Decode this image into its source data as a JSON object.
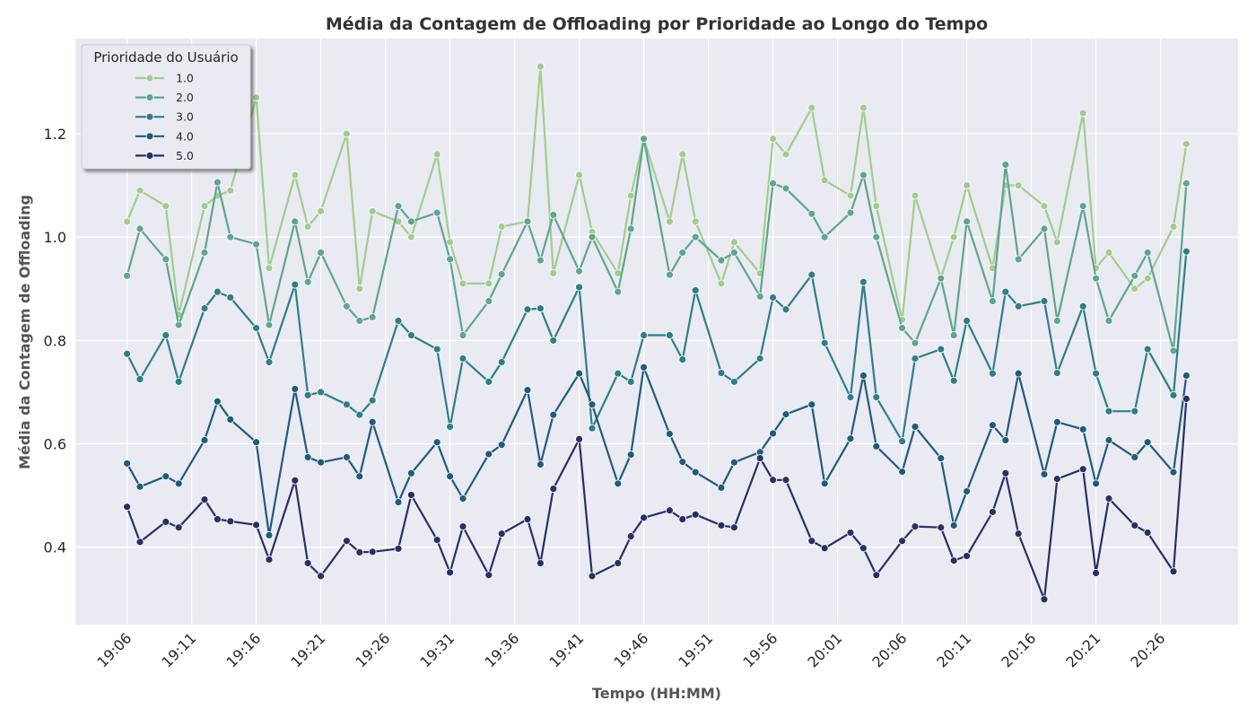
{
  "chart_data": {
    "type": "line",
    "title": "Média da Contagem de Offloading por Prioridade ao Longo do Tempo",
    "xlabel": "Tempo (HH:MM)",
    "ylabel": "Média da Contagem de Offloading",
    "legend_title": "Prioridade do Usuário",
    "legend_loc": "upper left",
    "grid": true,
    "x": [
      "19:06",
      "19:07",
      "19:09",
      "19:10",
      "19:12",
      "19:13",
      "19:14",
      "19:16",
      "19:17",
      "19:19",
      "19:20",
      "19:21",
      "19:23",
      "19:24",
      "19:25",
      "19:27",
      "19:28",
      "19:30",
      "19:31",
      "19:32",
      "19:34",
      "19:35",
      "19:37",
      "19:38",
      "19:39",
      "19:41",
      "19:42",
      "19:44",
      "19:45",
      "19:46",
      "19:48",
      "19:49",
      "19:50",
      "19:52",
      "19:53",
      "19:55",
      "19:56",
      "19:57",
      "19:59",
      "20:00",
      "20:02",
      "20:03",
      "20:04",
      "20:06",
      "20:07",
      "20:09",
      "20:10",
      "20:11",
      "20:13",
      "20:14",
      "20:15",
      "20:17",
      "20:18",
      "20:20",
      "20:21",
      "20:22",
      "20:24",
      "20:25",
      "20:27",
      "20:28"
    ],
    "xlim": [
      "19:02",
      "20:32"
    ],
    "xticks": [
      "19:06",
      "19:11",
      "19:16",
      "19:21",
      "19:26",
      "19:31",
      "19:36",
      "19:41",
      "19:46",
      "19:51",
      "19:56",
      "20:01",
      "20:06",
      "20:11",
      "20:16",
      "20:21",
      "20:26"
    ],
    "ylim": [
      0.25,
      1.384
    ],
    "yticks": [
      0.4,
      0.6,
      0.8,
      {
        "value": 1,
        "label": "1.0"
      },
      1.2
    ],
    "series": [
      {
        "name": "1.0",
        "color": "#a1cd8e",
        "values": [
          1.03,
          1.09,
          1.06,
          0.85,
          1.06,
          1.08,
          1.09,
          1.27,
          0.94,
          1.12,
          1.02,
          1.05,
          1.2,
          0.9,
          1.05,
          1.03,
          1.0,
          1.16,
          0.99,
          0.91,
          0.91,
          1.02,
          1.03,
          1.33,
          0.93,
          1.12,
          1.01,
          0.93,
          1.08,
          1.19,
          1.03,
          1.16,
          1.03,
          0.91,
          0.99,
          0.93,
          1.19,
          1.16,
          1.25,
          1.11,
          1.08,
          1.25,
          1.06,
          0.84,
          1.08,
          0.92,
          1.0,
          1.1,
          0.94,
          1.1,
          1.1,
          1.06,
          0.99,
          1.24,
          0.94,
          0.97,
          0.9,
          0.92,
          1.02,
          1.18
        ]
      },
      {
        "name": "2.0",
        "color": "#5ea68f",
        "values": [
          0.925,
          1.016,
          0.957,
          0.83,
          0.97,
          1.106,
          1.0,
          0.986,
          0.83,
          1.03,
          0.913,
          0.97,
          0.866,
          0.838,
          0.845,
          1.06,
          1.03,
          1.047,
          0.957,
          0.81,
          0.876,
          0.928,
          1.03,
          0.955,
          1.043,
          0.934,
          1.0,
          0.894,
          1.016,
          1.19,
          0.927,
          0.97,
          1.0,
          0.955,
          0.97,
          0.885,
          1.104,
          1.094,
          1.045,
          1.0,
          1.047,
          1.12,
          1.0,
          0.824,
          0.795,
          0.92,
          0.81,
          1.03,
          0.876,
          1.14,
          0.957,
          1.016,
          0.838,
          1.06,
          0.92,
          0.838,
          0.925,
          0.97,
          0.78,
          1.104
        ]
      },
      {
        "name": "3.0",
        "color": "#2e7e88",
        "values": [
          0.774,
          0.725,
          0.81,
          0.72,
          0.862,
          0.894,
          0.883,
          0.824,
          0.758,
          0.908,
          0.694,
          0.7,
          0.676,
          0.656,
          0.684,
          0.838,
          0.81,
          0.783,
          0.633,
          0.765,
          0.72,
          0.758,
          0.86,
          0.862,
          0.8,
          0.903,
          0.63,
          0.736,
          0.72,
          0.81,
          0.81,
          0.763,
          0.897,
          0.737,
          0.72,
          0.765,
          0.883,
          0.86,
          0.927,
          0.795,
          0.69,
          0.913,
          0.69,
          0.605,
          0.765,
          0.783,
          0.722,
          0.838,
          0.736,
          0.894,
          0.866,
          0.876,
          0.737,
          0.866,
          0.736,
          0.663,
          0.663,
          0.783,
          0.694,
          0.972
        ]
      },
      {
        "name": "4.0",
        "color": "#1f5b7d",
        "values": [
          0.562,
          0.517,
          0.537,
          0.523,
          0.607,
          0.682,
          0.647,
          0.603,
          0.423,
          0.706,
          0.574,
          0.564,
          0.574,
          0.537,
          0.642,
          0.487,
          0.543,
          0.603,
          0.537,
          0.494,
          0.58,
          0.598,
          0.704,
          0.56,
          0.656,
          0.736,
          0.676,
          0.523,
          0.579,
          0.748,
          0.619,
          0.565,
          0.545,
          0.515,
          0.564,
          0.584,
          0.62,
          0.657,
          0.676,
          0.523,
          0.61,
          0.732,
          0.595,
          0.546,
          0.633,
          0.572,
          0.442,
          0.508,
          0.636,
          0.607,
          0.736,
          0.541,
          0.642,
          0.628,
          0.523,
          0.607,
          0.574,
          0.603,
          0.545,
          0.732
        ]
      },
      {
        "name": "5.0",
        "color": "#2b2e66",
        "values": [
          0.478,
          0.41,
          0.449,
          0.438,
          0.492,
          0.454,
          0.45,
          0.443,
          0.376,
          0.529,
          0.369,
          0.344,
          0.412,
          0.39,
          0.391,
          0.397,
          0.501,
          0.414,
          0.351,
          0.44,
          0.346,
          0.426,
          0.454,
          0.369,
          0.513,
          0.609,
          0.344,
          0.369,
          0.421,
          0.457,
          0.471,
          0.454,
          0.463,
          0.442,
          0.438,
          0.572,
          0.53,
          0.53,
          0.412,
          0.398,
          0.428,
          0.398,
          0.346,
          0.412,
          0.44,
          0.438,
          0.374,
          0.383,
          0.468,
          0.543,
          0.426,
          0.299,
          0.532,
          0.551,
          0.35,
          0.494,
          0.442,
          0.428,
          0.353,
          0.687
        ]
      }
    ]
  }
}
